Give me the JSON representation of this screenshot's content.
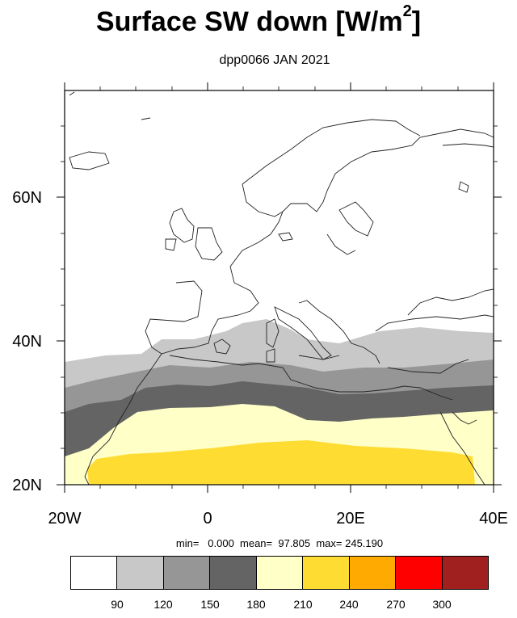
{
  "title": {
    "main": "Surface SW down [W/m",
    "sup": "2",
    "close": "]"
  },
  "subtitle": "dpp0066 JAN 2021",
  "axes": {
    "x_ticks": [
      "20W",
      "0",
      "20E",
      "40E"
    ],
    "y_ticks": [
      "20N",
      "40N",
      "60N"
    ]
  },
  "stats_line": "min=   0.000  mean=  97.805  max= 245.190",
  "colorbar": {
    "colors": [
      "#ffffff",
      "#c8c8c8",
      "#969696",
      "#646464",
      "#ffffc8",
      "#ffdc32",
      "#ffaa00",
      "#ff0000",
      "#a02020"
    ],
    "labels": [
      "90",
      "120",
      "150",
      "180",
      "210",
      "240",
      "270",
      "300"
    ]
  },
  "chart_data": {
    "type": "heatmap",
    "title": "Surface SW down [W/m2]",
    "subtitle": "dpp0066 JAN 2021",
    "x_range_lon": [
      -20,
      40
    ],
    "y_range_lat": [
      20,
      75
    ],
    "x_ticks": [
      "20W",
      "0",
      "20E",
      "40E"
    ],
    "y_ticks": [
      "20N",
      "40N",
      "60N"
    ],
    "levels": [
      90,
      120,
      150,
      180,
      210,
      240,
      270,
      300
    ],
    "stats": {
      "min": 0.0,
      "mean": 97.805,
      "max": 245.19
    }
  }
}
